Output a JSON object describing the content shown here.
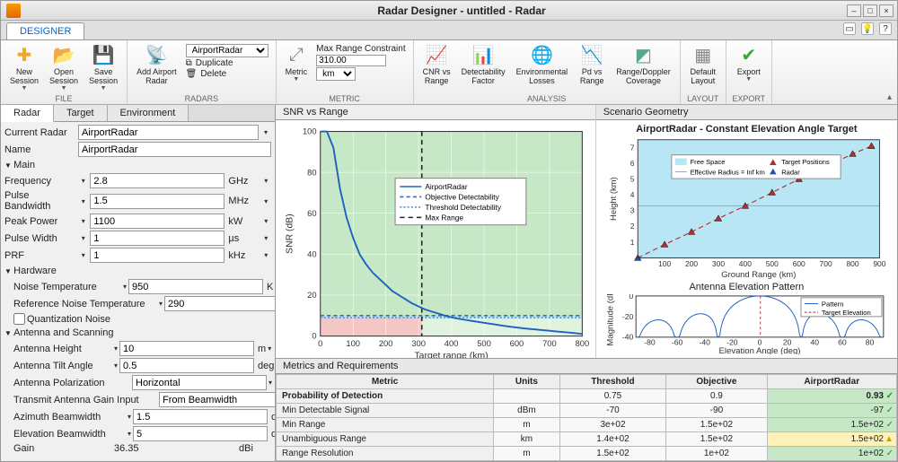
{
  "window": {
    "title": "Radar Designer - untitled - Radar"
  },
  "ribbon": {
    "tab": "DESIGNER",
    "groups": {
      "file": {
        "label": "FILE",
        "new": "New\nSession",
        "open": "Open\nSession",
        "save": "Save\nSession"
      },
      "radars": {
        "label": "RADARS",
        "add": "Add Airport\nRadar",
        "selected": "AirportRadar",
        "duplicate": "Duplicate",
        "delete": "Delete"
      },
      "metric": {
        "label": "METRIC",
        "constraint": "Max Range Constraint",
        "value": "310.00",
        "unit": "km"
      },
      "analysis": {
        "label": "ANALYSIS",
        "cnr": "CNR vs\nRange",
        "det": "Detectability\nFactor",
        "env": "Environmental\nLosses",
        "pd": "Pd vs\nRange",
        "rdc": "Range/Doppler\nCoverage"
      },
      "layout": {
        "label": "LAYOUT",
        "default": "Default\nLayout"
      },
      "export": {
        "label": "EXPORT",
        "export": "Export"
      }
    }
  },
  "left": {
    "tabs": {
      "radar": "Radar",
      "target": "Target",
      "env": "Environment"
    },
    "currentRadarLbl": "Current Radar",
    "currentRadar": "AirportRadar",
    "nameLbl": "Name",
    "name": "AirportRadar",
    "mainLbl": "Main",
    "freqLbl": "Frequency",
    "freq": "2.8",
    "freqUnit": "GHz",
    "pbwLbl": "Pulse Bandwidth",
    "pbw": "1.5",
    "pbwUnit": "MHz",
    "ppLbl": "Peak Power",
    "pp": "1100",
    "ppUnit": "kW",
    "pwLbl": "Pulse Width",
    "pw": "1",
    "pwUnit": "µs",
    "prfLbl": "PRF",
    "prf": "1",
    "prfUnit": "kHz",
    "hwLbl": "Hardware",
    "ntLbl": "Noise Temperature",
    "nt": "950",
    "ntUnit": "K",
    "rntLbl": "Reference Noise Temperature",
    "rnt": "290",
    "rntUnit": "K",
    "qnLbl": "Quantization Noise",
    "asLbl": "Antenna and Scanning",
    "ahLbl": "Antenna Height",
    "ah": "10",
    "ahUnit": "m",
    "atLbl": "Antenna Tilt Angle",
    "at": "0.5",
    "atUnit": "deg",
    "apLbl": "Antenna Polarization",
    "ap": "Horizontal",
    "tgiLbl": "Transmit Antenna Gain Input",
    "tgi": "From Beamwidth",
    "abLbl": "Azimuth Beamwidth",
    "ab": "1.5",
    "abUnit": "deg",
    "ebLbl": "Elevation Beamwidth",
    "eb": "5",
    "ebUnit": "deg",
    "gainLbl": "Gain",
    "gain": "36.35",
    "gainUnit": "dBi"
  },
  "snr": {
    "tab": "SNR vs Range",
    "ylabel": "SNR (dB)",
    "xlabel": "Target range (km)",
    "xlim": [
      0,
      800
    ],
    "ylim": [
      0,
      100
    ],
    "xtick": 100,
    "ytick": 20,
    "threshold_y": 9,
    "objective_y": 10,
    "maxRange_x": 310,
    "series": [
      100,
      100,
      92,
      72,
      58,
      48,
      40,
      35,
      31,
      28,
      25,
      22,
      20,
      18,
      16,
      14.5,
      13,
      12,
      11,
      10,
      9.2,
      8.5,
      8,
      7.5,
      7,
      6.5,
      6,
      5.5,
      5,
      4.6,
      4.2,
      3.8,
      3.5,
      3.2,
      2.9,
      2.6,
      2.3,
      2,
      1.7,
      1.4,
      1
    ],
    "colors": {
      "bg_ok": "#c6e8c6",
      "bg_mid": "#e0f3de",
      "bg_bad": "#f5c6c6",
      "line": "#1f5fbf",
      "obj": "#2a6fd6",
      "thr": "#3a8fe6",
      "maxr": "#222",
      "grid": "#e0e0e0"
    },
    "legend": {
      "line": "AirportRadar",
      "obj": "Objective Detectability",
      "thr": "Threshold Detectability",
      "maxr": "Max Range"
    }
  },
  "geom": {
    "tab": "Scenario Geometry",
    "title": "AirportRadar - Constant Elevation Angle Target",
    "y": "Height (km)",
    "x": "Ground Range (km)",
    "xlim": [
      0,
      900
    ],
    "ylim": [
      0,
      7.5
    ],
    "xtick": 100,
    "ytick": 1,
    "colors": {
      "free": "#b8e6f5",
      "eff": "#a0a0a0",
      "tgt": "#b03030",
      "radar": "#2050b0"
    },
    "legend": {
      "free": "Free Space",
      "eff": "Effective Radius = Inf km",
      "tgt": "Target Positions",
      "radar": "Radar"
    },
    "points": [
      [
        0,
        0.0
      ],
      [
        100,
        0.85
      ],
      [
        200,
        1.65
      ],
      [
        300,
        2.5
      ],
      [
        400,
        3.3
      ],
      [
        500,
        4.15
      ],
      [
        600,
        5.0
      ],
      [
        700,
        5.8
      ],
      [
        800,
        6.6
      ],
      [
        870,
        7.1
      ]
    ]
  },
  "elev": {
    "title": "Antenna Elevation Pattern",
    "y": "Magnitude (dB)",
    "x": "Elevation Angle (deg)",
    "xlim": [
      -90,
      90
    ],
    "ylim": [
      -40,
      0
    ],
    "legend": {
      "pat": "Pattern",
      "te": "Target Elevation"
    },
    "colors": {
      "pat": "#1f5fbf",
      "te": "#b03030"
    }
  },
  "metrics": {
    "tab": "Metrics and Requirements",
    "cols": {
      "metric": "Metric",
      "units": "Units",
      "thr": "Threshold",
      "obj": "Objective",
      "radar": "AirportRadar"
    },
    "rows": [
      {
        "name": "Probability of Detection",
        "units": "",
        "thr": "0.75",
        "obj": "0.9",
        "val": "0.93",
        "bold": true,
        "bg": "#c6e8c6",
        "ok": true
      },
      {
        "name": "Min Detectable Signal",
        "units": "dBm",
        "thr": "-70",
        "obj": "-90",
        "val": "-97",
        "bg": "#c6e8c6",
        "ok": true
      },
      {
        "name": "Min Range",
        "units": "m",
        "thr": "3e+02",
        "obj": "1.5e+02",
        "val": "1.5e+02",
        "bg": "#c6e8c6",
        "ok": true
      },
      {
        "name": "Unambiguous Range",
        "units": "km",
        "thr": "1.4e+02",
        "obj": "1.5e+02",
        "val": "1.5e+02",
        "bg": "#fff2b8",
        "ok": false,
        "warn": true
      },
      {
        "name": "Range Resolution",
        "units": "m",
        "thr": "1.5e+02",
        "obj": "1e+02",
        "val": "1e+02",
        "bg": "#c6e8c6",
        "ok": true
      }
    ]
  }
}
